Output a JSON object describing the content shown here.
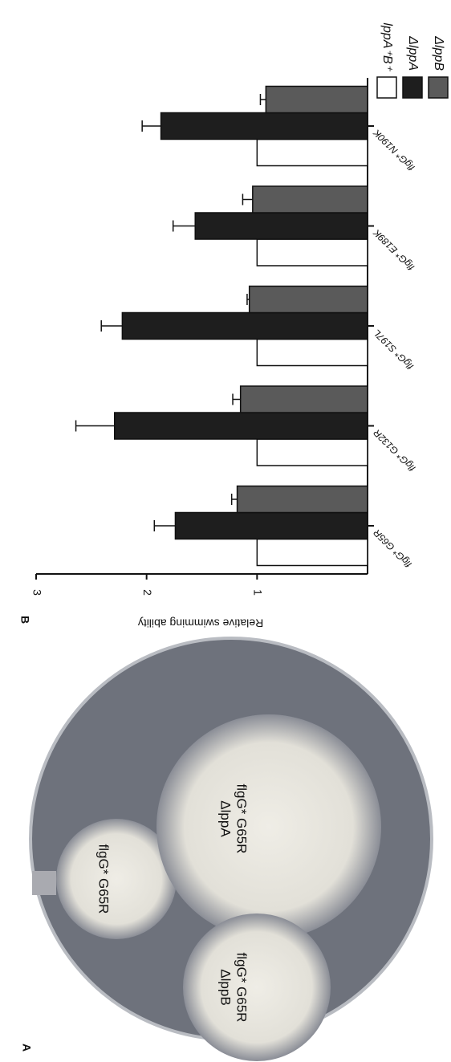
{
  "panels": {
    "a": "A",
    "b": "B"
  },
  "plate": {
    "colonies": [
      {
        "line1": "flgG* G65R",
        "line2": ""
      },
      {
        "line1": "flgG* G65R",
        "line2": "ΔlppA"
      },
      {
        "line1": "flgG* G65R",
        "line2": "ΔlppB"
      }
    ]
  },
  "chart_data": {
    "type": "bar",
    "y_label": "Relative swimming ability",
    "categories": [
      "flgG* G65R",
      "flgG* G132R",
      "flgG* S197L",
      "flgG* E189K",
      "flgG* N190K"
    ],
    "series": [
      {
        "name": "lppA⁺B⁺",
        "color": "#ffffff",
        "values": [
          1,
          1,
          1,
          1,
          1
        ],
        "errors": null
      },
      {
        "name": "ΔlppA",
        "color": "#1e1e1e",
        "values": [
          1.74,
          2.29,
          2.22,
          1.56,
          1.87
        ],
        "errors": [
          0.19,
          0.35,
          0.19,
          0.2,
          0.17
        ]
      },
      {
        "name": "ΔlppB",
        "color": "#5a5a5a",
        "values": [
          1.18,
          1.15,
          1.07,
          1.04,
          0.92
        ],
        "errors": [
          0.05,
          0.07,
          0.02,
          0.09,
          0.05
        ]
      }
    ],
    "ylim": [
      0,
      3
    ],
    "yticks": [
      1,
      2,
      3
    ]
  }
}
